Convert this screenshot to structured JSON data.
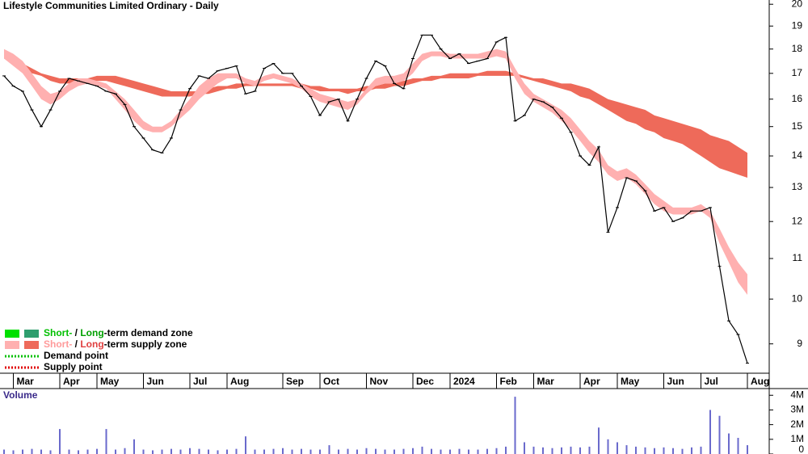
{
  "chart_data": [
    {
      "type": "price",
      "title": "Lifestyle Communities Limited Ordinary - Daily",
      "categories": [
        null,
        "Mar",
        null,
        null,
        null,
        null,
        "Apr",
        null,
        null,
        null,
        "May",
        null,
        null,
        null,
        null,
        "Jun",
        null,
        null,
        null,
        null,
        "Jul",
        null,
        null,
        null,
        "Aug",
        null,
        null,
        null,
        null,
        null,
        "Sep",
        null,
        null,
        null,
        "Oct",
        null,
        null,
        null,
        null,
        "Nov",
        null,
        null,
        null,
        null,
        "Dec",
        null,
        null,
        null,
        "2024",
        null,
        null,
        null,
        null,
        "Feb",
        null,
        null,
        null,
        "Mar",
        null,
        null,
        null,
        null,
        "Apr",
        null,
        null,
        null,
        "May",
        null,
        null,
        null,
        null,
        "Jun",
        null,
        null,
        null,
        "Jul",
        null,
        null,
        null,
        null,
        "Aug"
      ],
      "log_scale": true,
      "ylim": [
        8.4,
        20.2
      ],
      "yticks": [
        9,
        10,
        11,
        12,
        13,
        14,
        15,
        16,
        17,
        18,
        19,
        20
      ],
      "price_color": "#000000",
      "values": [
        16.9,
        16.5,
        16.3,
        15.6,
        15.0,
        15.6,
        16.3,
        16.8,
        16.7,
        16.6,
        16.5,
        16.3,
        16.2,
        15.8,
        15.0,
        14.6,
        14.2,
        14.1,
        14.6,
        15.6,
        16.4,
        16.9,
        16.8,
        17.1,
        17.2,
        17.3,
        16.2,
        16.3,
        17.2,
        17.4,
        17.0,
        17.0,
        16.5,
        16.1,
        15.4,
        15.9,
        16.0,
        15.2,
        16.0,
        16.8,
        17.5,
        17.3,
        16.6,
        16.4,
        17.6,
        18.6,
        18.6,
        18.0,
        17.6,
        17.8,
        17.4,
        17.5,
        17.6,
        18.3,
        18.5,
        15.2,
        15.4,
        16.0,
        15.9,
        15.7,
        15.3,
        14.8,
        14.0,
        13.7,
        14.3,
        11.7,
        12.4,
        13.3,
        13.2,
        12.9,
        12.3,
        12.4,
        12.0,
        12.1,
        12.3,
        12.3,
        12.4,
        10.8,
        9.5,
        9.2,
        8.6
      ],
      "bands": [
        {
          "color": "#ee6a5a",
          "upper": [
            17.8,
            17.6,
            17.4,
            17.2,
            17.0,
            16.9,
            16.8,
            16.8,
            16.8,
            16.8,
            16.9,
            16.9,
            16.9,
            16.8,
            16.7,
            16.6,
            16.5,
            16.4,
            16.3,
            16.3,
            16.3,
            16.3,
            16.4,
            16.5,
            16.5,
            16.6,
            16.6,
            16.6,
            16.6,
            16.6,
            16.6,
            16.6,
            16.6,
            16.5,
            16.5,
            16.4,
            16.4,
            16.4,
            16.4,
            16.5,
            16.5,
            16.6,
            16.6,
            16.7,
            16.8,
            16.8,
            16.9,
            16.9,
            17.0,
            17.0,
            17.0,
            17.0,
            17.1,
            17.1,
            17.1,
            17.0,
            16.9,
            16.8,
            16.8,
            16.7,
            16.6,
            16.6,
            16.5,
            16.4,
            16.2,
            16.0,
            15.9,
            15.8,
            15.7,
            15.6,
            15.4,
            15.3,
            15.2,
            15.1,
            15.0,
            14.9,
            14.7,
            14.6,
            14.5,
            14.3,
            14.1
          ],
          "lower": [
            17.6,
            17.4,
            17.2,
            17.0,
            16.9,
            16.7,
            16.6,
            16.6,
            16.6,
            16.6,
            16.7,
            16.7,
            16.6,
            16.5,
            16.4,
            16.3,
            16.2,
            16.1,
            16.1,
            16.1,
            16.1,
            16.2,
            16.2,
            16.3,
            16.4,
            16.4,
            16.5,
            16.5,
            16.5,
            16.5,
            16.5,
            16.5,
            16.4,
            16.4,
            16.3,
            16.3,
            16.3,
            16.2,
            16.3,
            16.3,
            16.4,
            16.4,
            16.5,
            16.5,
            16.6,
            16.7,
            16.7,
            16.8,
            16.8,
            16.8,
            16.8,
            16.9,
            16.9,
            16.9,
            16.9,
            16.9,
            16.8,
            16.7,
            16.6,
            16.5,
            16.4,
            16.3,
            16.1,
            16.0,
            15.8,
            15.6,
            15.4,
            15.2,
            15.1,
            14.9,
            14.8,
            14.6,
            14.5,
            14.4,
            14.2,
            14.0,
            13.8,
            13.6,
            13.5,
            13.4,
            13.3
          ]
        },
        {
          "color": "#ffb0b0",
          "upper": [
            18.0,
            17.8,
            17.5,
            17.0,
            16.5,
            16.2,
            16.3,
            16.6,
            16.8,
            16.8,
            16.7,
            16.6,
            16.3,
            16.0,
            15.6,
            15.2,
            15.0,
            15.0,
            15.2,
            15.6,
            16.0,
            16.5,
            16.8,
            17.0,
            17.0,
            17.0,
            16.8,
            16.7,
            16.9,
            17.0,
            16.9,
            16.8,
            16.6,
            16.4,
            16.2,
            16.1,
            16.0,
            15.9,
            16.0,
            16.4,
            16.8,
            16.9,
            16.9,
            17.0,
            17.4,
            17.8,
            17.9,
            17.9,
            17.8,
            17.8,
            17.8,
            17.8,
            17.9,
            18.0,
            17.9,
            17.2,
            16.6,
            16.2,
            16.0,
            15.8,
            15.6,
            15.3,
            14.9,
            14.5,
            14.2,
            13.7,
            13.5,
            13.6,
            13.4,
            13.1,
            12.8,
            12.6,
            12.4,
            12.4,
            12.4,
            12.5,
            12.3,
            11.8,
            11.3,
            10.9,
            10.6
          ],
          "lower": [
            17.6,
            17.3,
            17.0,
            16.5,
            16.0,
            15.8,
            16.0,
            16.3,
            16.5,
            16.6,
            16.5,
            16.4,
            16.0,
            15.6,
            15.2,
            14.9,
            14.8,
            14.8,
            15.0,
            15.3,
            15.6,
            16.0,
            16.3,
            16.6,
            16.8,
            16.8,
            16.6,
            16.5,
            16.7,
            16.8,
            16.7,
            16.6,
            16.4,
            16.1,
            15.9,
            15.8,
            15.7,
            15.6,
            15.8,
            16.2,
            16.5,
            16.6,
            16.6,
            16.7,
            17.0,
            17.5,
            17.7,
            17.7,
            17.6,
            17.6,
            17.6,
            17.6,
            17.6,
            17.7,
            17.6,
            16.8,
            16.2,
            15.9,
            15.7,
            15.5,
            15.2,
            14.9,
            14.5,
            14.1,
            13.8,
            13.4,
            13.2,
            13.3,
            13.1,
            12.8,
            12.5,
            12.3,
            12.2,
            12.2,
            12.2,
            12.3,
            12.1,
            11.4,
            10.9,
            10.4,
            10.1
          ]
        }
      ],
      "legend": [
        {
          "swatches": [
            "#00e000",
            "#2e9e6e"
          ],
          "parts": [
            {
              "text": "Short-",
              "color": "#00c000"
            },
            {
              "text": " / ",
              "color": "#000000"
            },
            {
              "text": "Long",
              "color": "#00a000"
            },
            {
              "text": "-term demand zone",
              "color": "#000000"
            }
          ]
        },
        {
          "swatches": [
            "#ffb0b0",
            "#ee6a5a"
          ],
          "parts": [
            {
              "text": "Short-",
              "color": "#ff9a9a"
            },
            {
              "text": " / ",
              "color": "#000000"
            },
            {
              "text": "Long",
              "color": "#e04040"
            },
            {
              "text": "-term supply zone",
              "color": "#000000"
            }
          ]
        },
        {
          "dotted": "#00c000",
          "parts": [
            {
              "text": "Demand point",
              "color": "#000000"
            }
          ]
        },
        {
          "dotted": "#e00000",
          "parts": [
            {
              "text": "Supply point",
              "color": "#000000"
            }
          ]
        }
      ]
    },
    {
      "type": "volume",
      "title": "Volume",
      "color": "#6a6acc",
      "ylim": [
        0,
        4400000
      ],
      "yticks": [
        0,
        {
          "value": 1000000,
          "label": "1M"
        },
        {
          "value": 2000000,
          "label": "2M"
        },
        {
          "value": 3000000,
          "label": "3M"
        },
        {
          "value": 4000000,
          "label": "4M"
        }
      ],
      "values": [
        300000,
        250000,
        300000,
        350000,
        300000,
        250000,
        1700000,
        300000,
        250000,
        300000,
        350000,
        1700000,
        300000,
        400000,
        1000000,
        300000,
        250000,
        300000,
        350000,
        300000,
        400000,
        350000,
        300000,
        250000,
        300000,
        350000,
        1200000,
        300000,
        300000,
        350000,
        400000,
        300000,
        350000,
        300000,
        300000,
        600000,
        300000,
        350000,
        300000,
        400000,
        350000,
        300000,
        300000,
        350000,
        400000,
        500000,
        350000,
        300000,
        300000,
        350000,
        300000,
        300000,
        350000,
        400000,
        500000,
        3900000,
        800000,
        500000,
        450000,
        400000,
        450000,
        500000,
        450000,
        500000,
        1800000,
        1000000,
        800000,
        600000,
        500000,
        450000,
        400000,
        450000,
        400000,
        350000,
        450000,
        500000,
        3000000,
        2600000,
        1400000,
        1100000,
        600000
      ]
    }
  ]
}
